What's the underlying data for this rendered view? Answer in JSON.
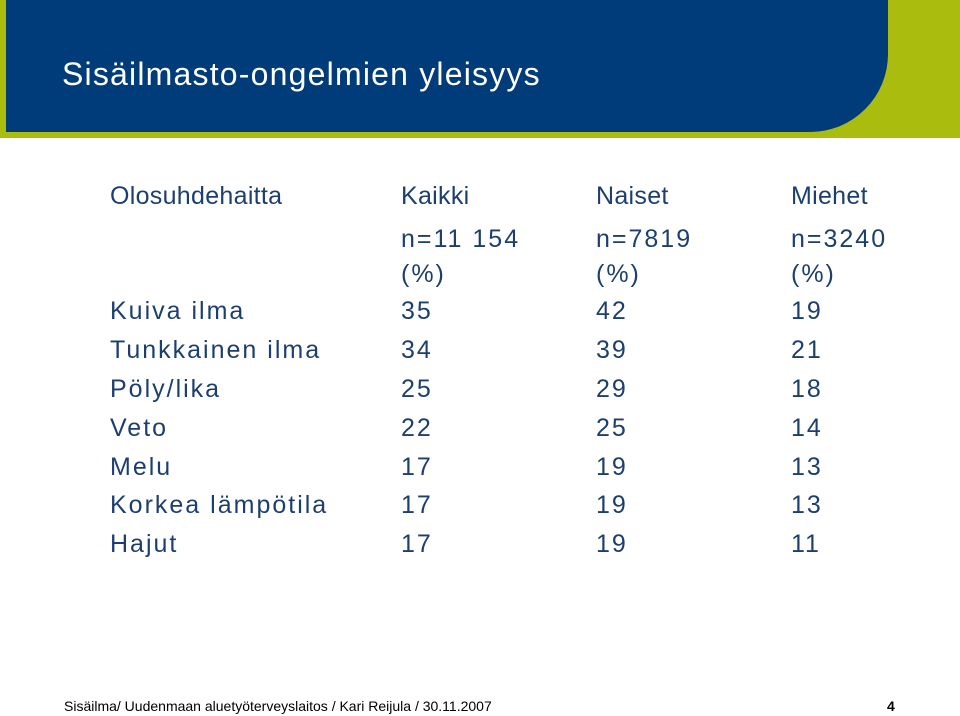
{
  "slide": {
    "title": "Sisäilmasto-ongelmien yleisyys",
    "footer": "Sisäilma/ Uudenmaan aluetyöterveyslaitos / Kari Reijula / 30.11.2007",
    "page_number": "4"
  },
  "table": {
    "headers": [
      "Olosuhdehaitta",
      "Kaikki",
      "Naiset",
      "Miehet"
    ],
    "n_values": [
      "",
      "n=11 154",
      "n=7819",
      "n=3240"
    ],
    "units": [
      "",
      "(%)",
      "(%)",
      "(%)"
    ],
    "rows": [
      {
        "label": "Kuiva ilma",
        "kaikki": "35",
        "naiset": "42",
        "miehet": "19"
      },
      {
        "label": "Tunkkainen ilma",
        "kaikki": "34",
        "naiset": "39",
        "miehet": "21"
      },
      {
        "label": "Pöly/lika",
        "kaikki": "25",
        "naiset": "29",
        "miehet": "18"
      },
      {
        "label": "Veto",
        "kaikki": "22",
        "naiset": "25",
        "miehet": "14"
      },
      {
        "label": "Melu",
        "kaikki": "17",
        "naiset": "19",
        "miehet": "13"
      },
      {
        "label": "Korkea lämpötila",
        "kaikki": "17",
        "naiset": "19",
        "miehet": "13"
      },
      {
        "label": "Hajut",
        "kaikki": "17",
        "naiset": "19",
        "miehet": "11"
      }
    ]
  },
  "colors": {
    "header_blue": "#003b7a",
    "accent_green": "#aabd0f",
    "table_text": "#1d3f6f"
  }
}
